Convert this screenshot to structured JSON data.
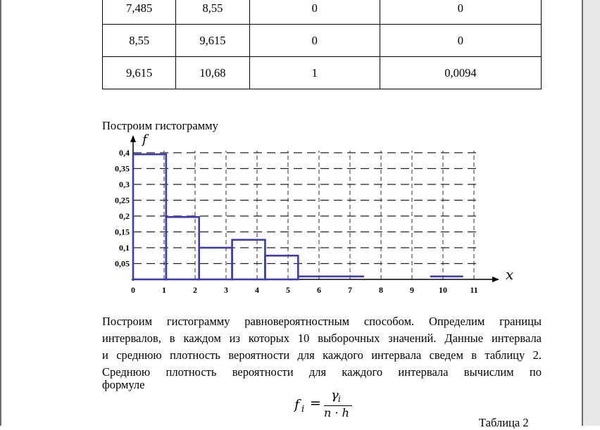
{
  "table": {
    "rows": [
      [
        "7,485",
        "8,55",
        "0",
        "0"
      ],
      [
        "8,55",
        "9,615",
        "0",
        "0"
      ],
      [
        "9,615",
        "10,68",
        "1",
        "0,0094"
      ]
    ]
  },
  "intro_text": "Построим гистограмму",
  "chart_data": {
    "type": "histogram",
    "xlabel": "x",
    "ylabel": "f",
    "x_ticks": [
      "0",
      "1",
      "2",
      "3",
      "4",
      "5",
      "6",
      "7",
      "8",
      "9",
      "10",
      "11"
    ],
    "y_ticks": [
      "0,05",
      "0,1",
      "0,15",
      "0,2",
      "0,25",
      "0,3",
      "0,35",
      "0,4"
    ],
    "xlim": [
      0,
      11
    ],
    "ylim": [
      0,
      0.4
    ],
    "grid": true,
    "bars": [
      {
        "from": 0,
        "to": 1.065,
        "value": 0.395
      },
      {
        "from": 1.065,
        "to": 2.13,
        "value": 0.197
      },
      {
        "from": 2.13,
        "to": 3.195,
        "value": 0.1
      },
      {
        "from": 3.195,
        "to": 4.26,
        "value": 0.125
      },
      {
        "from": 4.26,
        "to": 5.325,
        "value": 0.075
      },
      {
        "from": 5.325,
        "to": 6.39,
        "value": 0.0094
      },
      {
        "from": 6.39,
        "to": 7.455,
        "value": 0.0094
      },
      {
        "from": 7.455,
        "to": 8.52,
        "value": 0
      },
      {
        "from": 8.52,
        "to": 9.585,
        "value": 0
      },
      {
        "from": 9.585,
        "to": 10.65,
        "value": 0.0094
      }
    ]
  },
  "paragraph_lines": [
    "Построим гистограмму равновероятностным способом. Определим границы",
    "интервалов, в каждом из которых 10 выборочных значений. Данные интервала",
    "и среднюю плотность вероятности для каждого интервала сведем в таблицу 2.",
    "Среднюю плотность вероятности для каждого интервала вычислим по"
  ],
  "paragraph_last_line": "формуле",
  "formula": {
    "lhs": "f",
    "lhs_sub": "i",
    "numerator": "γ",
    "numerator_sub": "i",
    "denominator": "n · h"
  },
  "table_caption": "Таблица 2"
}
